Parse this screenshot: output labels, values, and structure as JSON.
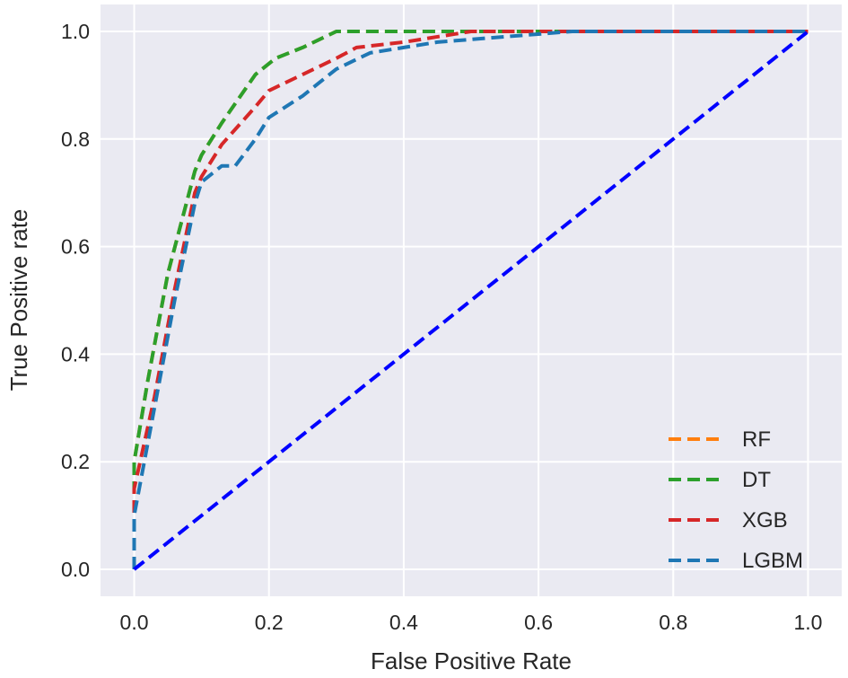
{
  "chart_data": {
    "type": "line",
    "xlabel": "False Positive Rate",
    "ylabel": "True Positive rate",
    "xlim": [
      -0.05,
      1.05
    ],
    "ylim": [
      -0.05,
      1.05
    ],
    "xticks": [
      "0.0",
      "0.2",
      "0.4",
      "0.6",
      "0.8",
      "1.0"
    ],
    "yticks": [
      "0.0",
      "0.2",
      "0.4",
      "0.6",
      "0.8",
      "1.0"
    ],
    "grid": true,
    "background_color": "#EAEAF2",
    "legend_position": "lower-right",
    "series": [
      {
        "name": "RF",
        "color": "#FF7F0E",
        "x": [
          0.0,
          0.0,
          0.02,
          0.05,
          0.09,
          0.1,
          0.13,
          0.18,
          0.21,
          0.25,
          0.3,
          0.35,
          1.0
        ],
        "y": [
          0.0,
          0.2,
          0.35,
          0.55,
          0.74,
          0.77,
          0.83,
          0.92,
          0.95,
          0.97,
          1.0,
          1.0,
          1.0
        ]
      },
      {
        "name": "DT",
        "color": "#2CA02C",
        "x": [
          0.0,
          0.0,
          0.02,
          0.05,
          0.09,
          0.1,
          0.13,
          0.18,
          0.21,
          0.25,
          0.3,
          0.35,
          1.0
        ],
        "y": [
          0.0,
          0.2,
          0.35,
          0.55,
          0.74,
          0.77,
          0.83,
          0.92,
          0.95,
          0.97,
          1.0,
          1.0,
          1.0
        ]
      },
      {
        "name": "XGB",
        "color": "#D62728",
        "x": [
          0.0,
          0.0,
          0.03,
          0.06,
          0.09,
          0.1,
          0.13,
          0.18,
          0.2,
          0.25,
          0.3,
          0.33,
          0.4,
          0.5,
          0.65,
          1.0
        ],
        "y": [
          0.0,
          0.15,
          0.32,
          0.52,
          0.7,
          0.73,
          0.79,
          0.86,
          0.89,
          0.92,
          0.95,
          0.97,
          0.98,
          1.0,
          1.0,
          1.0
        ]
      },
      {
        "name": "LGBM",
        "color": "#1F77B4",
        "x": [
          0.0,
          0.0,
          0.03,
          0.06,
          0.09,
          0.1,
          0.13,
          0.15,
          0.18,
          0.2,
          0.25,
          0.3,
          0.35,
          0.4,
          0.45,
          0.55,
          0.65,
          1.0
        ],
        "y": [
          0.0,
          0.1,
          0.3,
          0.5,
          0.68,
          0.72,
          0.75,
          0.75,
          0.8,
          0.84,
          0.88,
          0.93,
          0.96,
          0.97,
          0.98,
          0.99,
          1.0,
          1.0
        ]
      },
      {
        "name": "",
        "color": "#0000FF",
        "x": [
          0.0,
          1.0
        ],
        "y": [
          0.0,
          1.0
        ]
      }
    ]
  }
}
